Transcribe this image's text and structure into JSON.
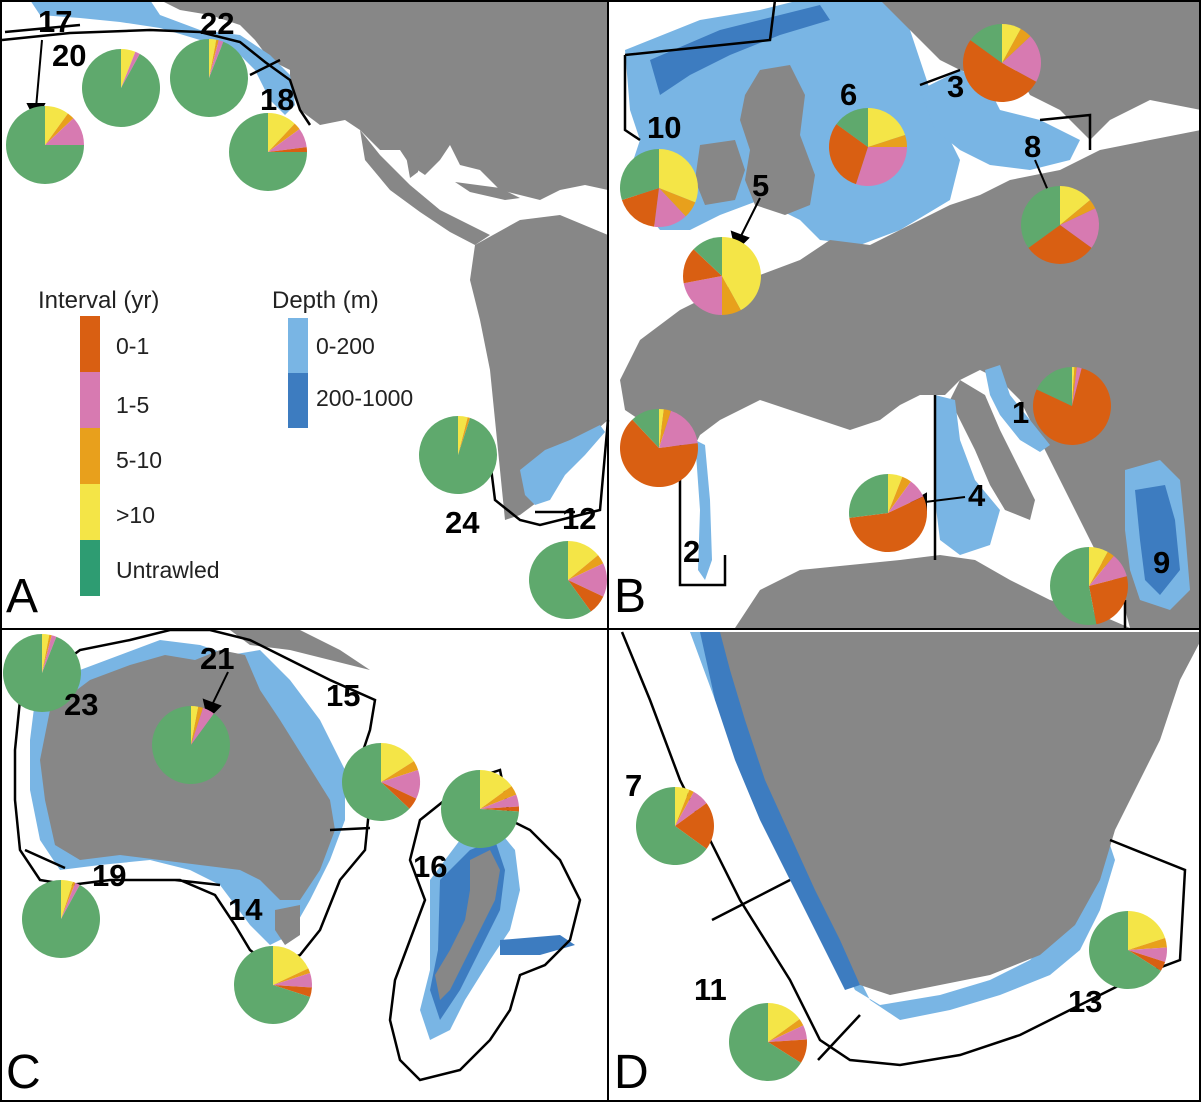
{
  "colors": {
    "interval_0_1": "#d95f12",
    "interval_1_5": "#d77ab1",
    "interval_5_10": "#e8a01c",
    "interval_gt10": "#f4e547",
    "untrawled": "#5fa96d",
    "land": "#878787",
    "depth_0_200": "#79b5e4",
    "depth_200_1000": "#3d7cc0"
  },
  "panels": [
    {
      "letter": "A"
    },
    {
      "letter": "B"
    },
    {
      "letter": "C"
    },
    {
      "letter": "D"
    }
  ],
  "legend": {
    "interval_title": "Interval (yr)",
    "interval_items": [
      {
        "label": "0-1",
        "color": "#d95f12"
      },
      {
        "label": "1-5",
        "color": "#d77ab1"
      },
      {
        "label": "5-10",
        "color": "#e8a01c"
      },
      {
        "label": ">10",
        "color": "#f4e547"
      },
      {
        "label": "Untrawled",
        "color": "#2e9c72"
      }
    ],
    "depth_title": "Depth (m)",
    "depth_items": [
      {
        "label": "0-200",
        "color": "#79b5e4"
      },
      {
        "label": "200-1000",
        "color": "#3d7cc0"
      }
    ]
  },
  "regions": [
    {
      "id": "17",
      "label": "17",
      "fractions": [
        0.0,
        0.12,
        0.03,
        0.1,
        0.75
      ]
    },
    {
      "id": "20",
      "label": "20",
      "fractions": [
        0.0,
        0.02,
        0.0,
        0.06,
        0.92
      ]
    },
    {
      "id": "22",
      "label": "22",
      "fractions": [
        0.0,
        0.02,
        0.01,
        0.03,
        0.94
      ]
    },
    {
      "id": "18",
      "label": "18",
      "fractions": [
        0.02,
        0.08,
        0.03,
        0.12,
        0.75
      ]
    },
    {
      "id": "24",
      "label": "24",
      "fractions": [
        0.0,
        0.0,
        0.01,
        0.04,
        0.95
      ]
    },
    {
      "id": "12",
      "label": "12",
      "fractions": [
        0.08,
        0.14,
        0.04,
        0.14,
        0.6
      ]
    },
    {
      "id": "10",
      "label": "10",
      "fractions": [
        0.18,
        0.14,
        0.07,
        0.31,
        0.3
      ]
    },
    {
      "id": "6",
      "label": "6",
      "fractions": [
        0.3,
        0.3,
        0.05,
        0.2,
        0.15
      ]
    },
    {
      "id": "3",
      "label": "3",
      "fractions": [
        0.52,
        0.2,
        0.05,
        0.08,
        0.15
      ]
    },
    {
      "id": "8",
      "label": "8",
      "fractions": [
        0.3,
        0.17,
        0.04,
        0.14,
        0.35
      ]
    },
    {
      "id": "5",
      "label": "5",
      "fractions": [
        0.15,
        0.22,
        0.08,
        0.42,
        0.13
      ]
    },
    {
      "id": "1",
      "label": "1",
      "fractions": [
        0.78,
        0.02,
        0.01,
        0.01,
        0.18
      ]
    },
    {
      "id": "2",
      "label": "2",
      "fractions": [
        0.65,
        0.18,
        0.03,
        0.02,
        0.12
      ]
    },
    {
      "id": "4",
      "label": "4",
      "fractions": [
        0.55,
        0.08,
        0.04,
        0.06,
        0.27
      ]
    },
    {
      "id": "9",
      "label": "9",
      "fractions": [
        0.26,
        0.1,
        0.03,
        0.08,
        0.53
      ]
    },
    {
      "id": "23",
      "label": "23",
      "fractions": [
        0.0,
        0.02,
        0.01,
        0.03,
        0.94
      ]
    },
    {
      "id": "21",
      "label": "21",
      "fractions": [
        0.0,
        0.05,
        0.02,
        0.03,
        0.9
      ]
    },
    {
      "id": "15",
      "label": "15",
      "fractions": [
        0.05,
        0.12,
        0.04,
        0.16,
        0.63
      ]
    },
    {
      "id": "16",
      "label": "16",
      "fractions": [
        0.02,
        0.05,
        0.04,
        0.15,
        0.74
      ]
    },
    {
      "id": "19",
      "label": "19",
      "fractions": [
        0.0,
        0.02,
        0.01,
        0.05,
        0.92
      ]
    },
    {
      "id": "14",
      "label": "14",
      "fractions": [
        0.04,
        0.06,
        0.02,
        0.18,
        0.7
      ]
    },
    {
      "id": "7",
      "label": "7",
      "fractions": [
        0.2,
        0.07,
        0.02,
        0.06,
        0.65
      ]
    },
    {
      "id": "11",
      "label": "11",
      "fractions": [
        0.1,
        0.06,
        0.03,
        0.15,
        0.66
      ]
    },
    {
      "id": "13",
      "label": "13",
      "fractions": [
        0.04,
        0.06,
        0.04,
        0.2,
        0.66
      ]
    }
  ]
}
